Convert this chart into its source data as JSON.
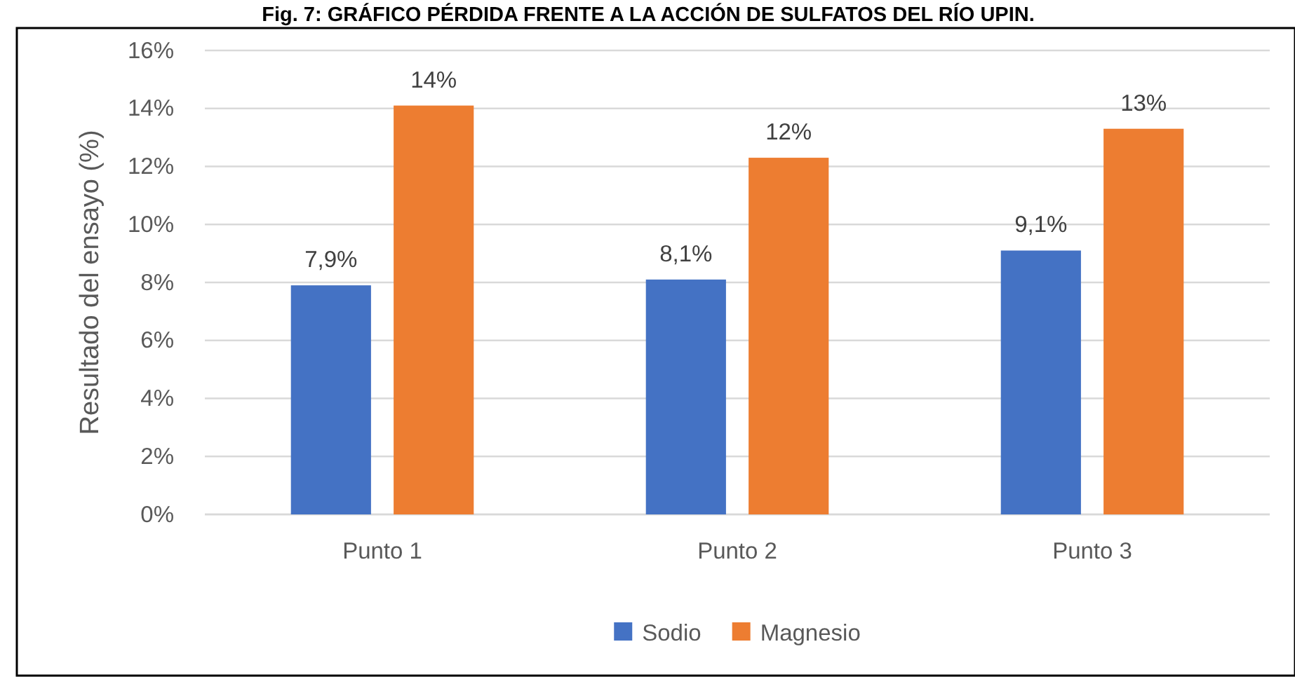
{
  "chart_data": {
    "type": "bar",
    "title": "Fig. 7: GRÁFICO PÉRDIDA FRENTE A LA ACCIÓN DE SULFATOS DEL RÍO UPIN.",
    "ylabel": "Resultado del ensayo (%)",
    "categories": [
      "Punto 1",
      "Punto 2",
      "Punto 3"
    ],
    "series": [
      {
        "name": "Sodio",
        "color": "#4472c4",
        "values": [
          7.9,
          8.1,
          9.1
        ],
        "value_labels": [
          "7,9%",
          "8,1%",
          "9,1%"
        ]
      },
      {
        "name": "Magnesio",
        "color": "#ed7d31",
        "values": [
          14.1,
          12.3,
          13.3
        ],
        "value_labels": [
          "14%",
          "12%",
          "13%"
        ]
      }
    ],
    "ylim": [
      0,
      16
    ],
    "yticks": [
      {
        "value": 0,
        "label": "0%"
      },
      {
        "value": 2,
        "label": "2%"
      },
      {
        "value": 4,
        "label": "4%"
      },
      {
        "value": 6,
        "label": "6%"
      },
      {
        "value": 8,
        "label": "8%"
      },
      {
        "value": 10,
        "label": "10%"
      },
      {
        "value": 12,
        "label": "12%"
      },
      {
        "value": 14,
        "label": "14%"
      },
      {
        "value": 16,
        "label": "16%"
      }
    ],
    "grid": "y",
    "legend": "bottom"
  }
}
